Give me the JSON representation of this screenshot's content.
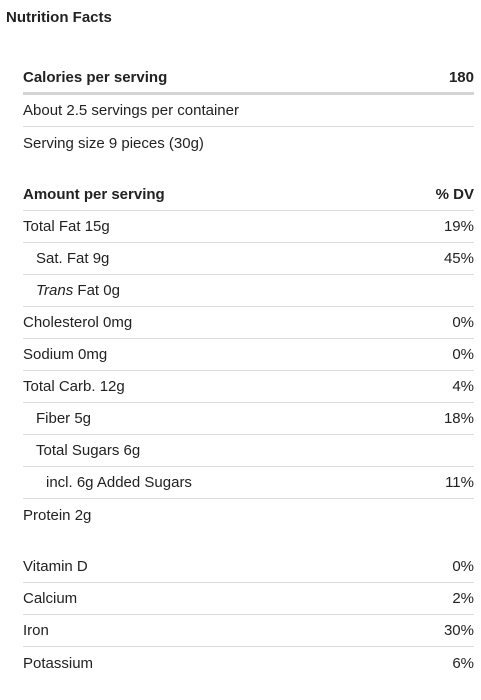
{
  "title": "Nutrition Facts",
  "calories": {
    "label": "Calories per serving",
    "value": "180"
  },
  "servings_per_container": "About 2.5 servings per container",
  "serving_size": "Serving size 9 pieces (30g)",
  "header": {
    "label": "Amount per serving",
    "value": "% DV"
  },
  "nutrients": [
    {
      "label": "Total Fat 15g",
      "value": "19%"
    },
    {
      "label": "Sat. Fat 9g",
      "value": "45%"
    },
    {
      "label_italic": "Trans",
      "label_rest": " Fat 0g",
      "value": ""
    },
    {
      "label": "Cholesterol 0mg",
      "value": "0%"
    },
    {
      "label": "Sodium 0mg",
      "value": "0%"
    },
    {
      "label": "Total Carb. 12g",
      "value": "4%"
    },
    {
      "label": "Fiber 5g",
      "value": "18%"
    },
    {
      "label": "Total Sugars 6g",
      "value": ""
    },
    {
      "label": "incl. 6g Added Sugars",
      "value": "11%"
    },
    {
      "label": "Protein 2g",
      "value": ""
    }
  ],
  "vitamins": [
    {
      "label": "Vitamin D",
      "value": "0%"
    },
    {
      "label": "Calcium",
      "value": "2%"
    },
    {
      "label": "Iron",
      "value": "30%"
    },
    {
      "label": "Potassium",
      "value": "6%"
    }
  ]
}
